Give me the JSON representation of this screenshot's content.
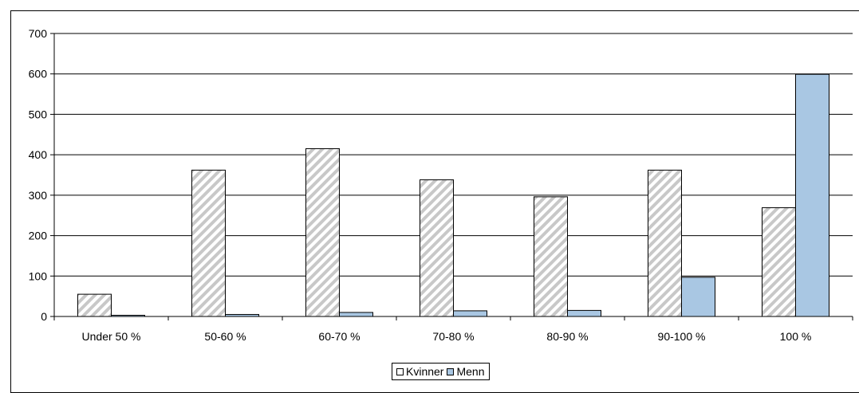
{
  "chart_data": {
    "type": "bar",
    "categories": [
      "Under 50 %",
      "50-60 %",
      "60-70 %",
      "70-80 %",
      "80-90 %",
      "90-100 %",
      "100 %"
    ],
    "series": [
      {
        "name": "Kvinner",
        "values": [
          55,
          362,
          415,
          338,
          296,
          362,
          269
        ],
        "fill": "hatched",
        "color": "#c8c8c8"
      },
      {
        "name": "Menn",
        "values": [
          3,
          5,
          10,
          14,
          15,
          97,
          599
        ],
        "fill": "solid",
        "color": "#a9c7e3"
      }
    ],
    "y_ticks": [
      "0",
      "100",
      "200",
      "300",
      "400",
      "500",
      "600",
      "700"
    ],
    "ylim": [
      0,
      700
    ],
    "grid": true,
    "legend_position": "bottom-center"
  }
}
